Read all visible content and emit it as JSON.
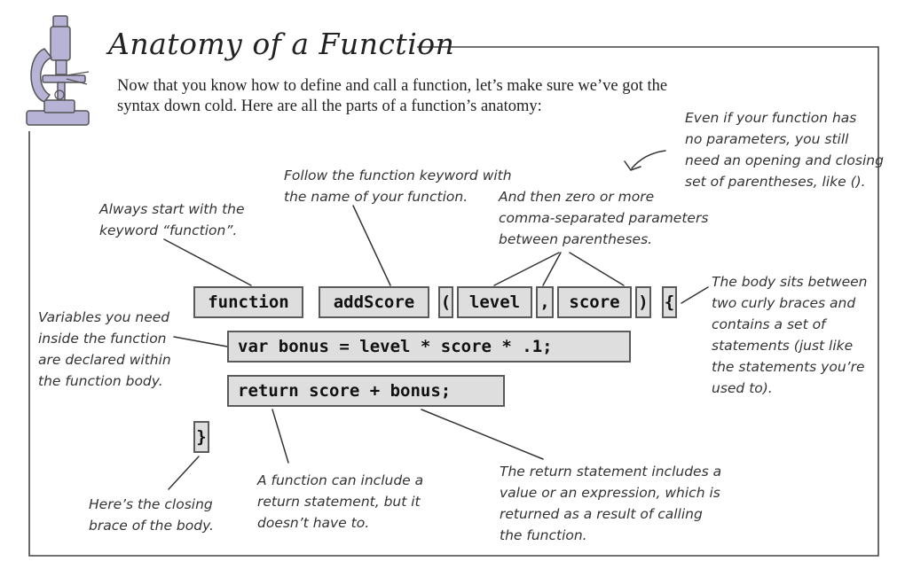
{
  "title": "Anatomy of a Function",
  "intro": "Now that you know how to define and call a function, let’s make sure we’ve got the syntax down cold. Here are all the parts of a function’s anatomy:",
  "notes": {
    "empty_params": "Even if your function has\nno parameters, you still\nneed an opening and closing\nset of parentheses, like ().",
    "name": "Follow the function keyword with\nthe name of your function.",
    "params": "And then zero or more\ncomma-separated parameters\nbetween parentheses.",
    "keyword": "Always start with the\nkeyword “function”.",
    "body": "The body sits between\ntwo curly braces and\ncontains a set of\nstatements (just like\nthe statements you’re\nused to).",
    "variables": "Variables you need\ninside the function\nare declared within\nthe function body.",
    "closing_brace": "Here’s the closing\nbrace of the body.",
    "return_optional": "A function can include a\nreturn statement, but it\ndoesn’t have to.",
    "return_value": "The return statement includes a\nvalue or an expression, which is\nreturned as a result of calling\nthe function."
  },
  "code": {
    "keyword": "function",
    "name": "addScore",
    "open_paren": "(",
    "param1": "level",
    "comma": ",",
    "param2": "score",
    "close_paren": ")",
    "open_brace": "{",
    "var_line": "var bonus = level * score * .1;",
    "return_line": "return score + bonus;",
    "close_brace": "}"
  },
  "colors": {
    "microscope": "#b7b3d6",
    "code_fill": "#dedede",
    "code_border": "#5a5a5a",
    "frame": "#444444"
  },
  "icons": {
    "header_icon": "microscope-icon"
  }
}
